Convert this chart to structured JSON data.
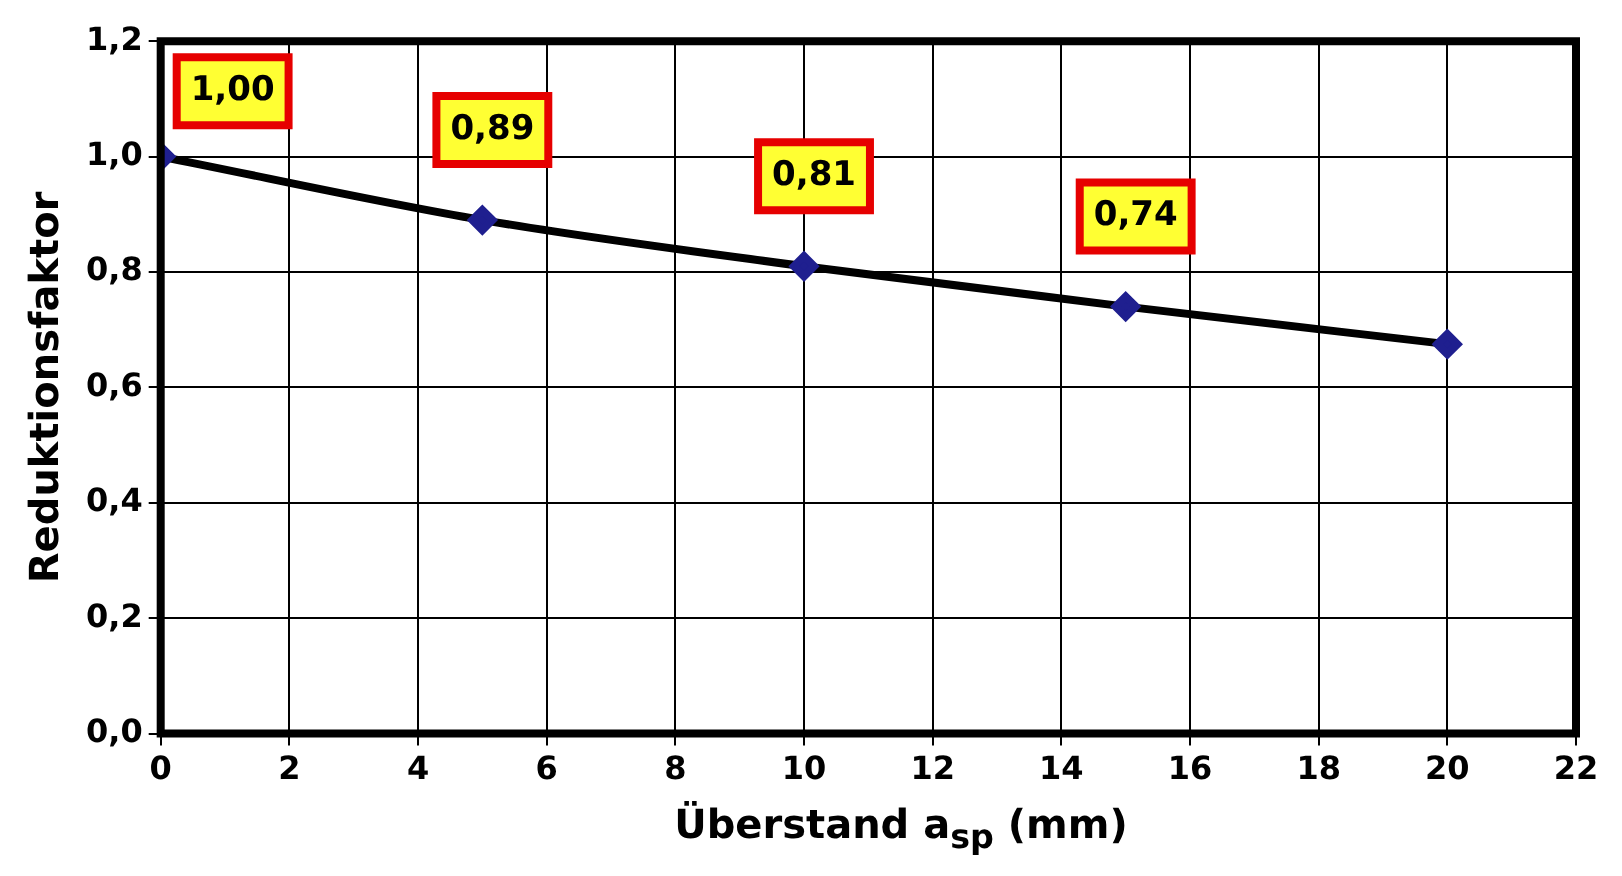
{
  "chart_data": {
    "type": "line",
    "xlabel": "Überstand a$_{sp}$ (mm)",
    "ylabel": "Reduktionsfaktor",
    "x": [
      0,
      5,
      10,
      15,
      20
    ],
    "series": [
      {
        "color": "#000000",
        "values": [
          1.0,
          0.89,
          0.81,
          0.74,
          0.675
        ],
        "value_labels": [
          "1,00",
          "0,89",
          "0,81",
          "0,74",
          null
        ]
      }
    ],
    "xlim": [
      0,
      22
    ],
    "xticks": [
      0,
      2,
      4,
      6,
      8,
      10,
      12,
      14,
      16,
      18,
      20,
      22
    ],
    "ylim": [
      0,
      1.2
    ],
    "yticks": [
      {
        "value": 0,
        "label": "0,0"
      },
      {
        "value": 0.2,
        "label": "0,2"
      },
      {
        "value": 0.4,
        "label": "0,4"
      },
      {
        "value": 0.6,
        "label": "0,6"
      },
      {
        "value": 0.8,
        "label": "0,8"
      },
      {
        "value": 1.0,
        "label": "1,0"
      },
      {
        "value": 1.2,
        "label": "1,2"
      }
    ],
    "grid": true,
    "marker": "diamond",
    "line_style": "solid"
  }
}
